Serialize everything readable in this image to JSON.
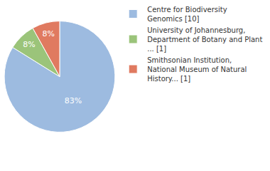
{
  "chart_data": {
    "type": "pie",
    "categories": [
      "Centre for Biodiversity Genomics [10]",
      "University of Johannesburg, Department of Botany and Plant ... [1]",
      "Smithsonian Institution, National Museum of Natural History... [1]"
    ],
    "values": [
      83,
      8,
      8
    ],
    "value_labels": [
      "83%",
      "8%",
      "8%"
    ],
    "colors": [
      "#9dbbe0",
      "#9bc47a",
      "#e07a60"
    ],
    "data_labels": true,
    "legend": "upper right"
  }
}
